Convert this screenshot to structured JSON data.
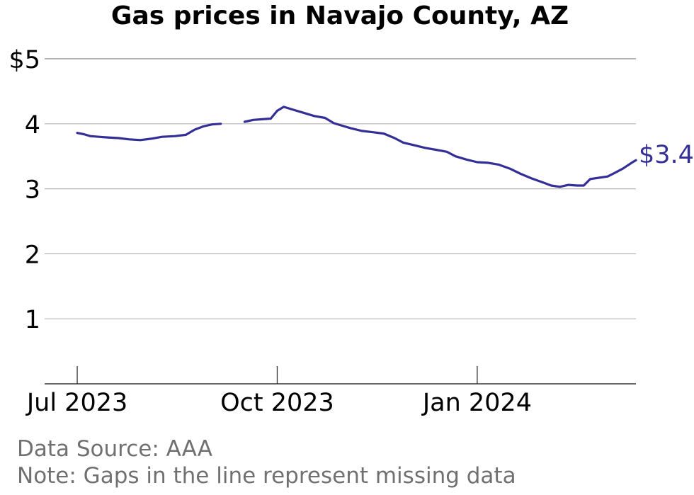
{
  "title": "Gas prices in Navajo County, AZ",
  "footer": {
    "source": "Data Source: AAA",
    "note": "Note: Gaps in the line represent missing data"
  },
  "colors": {
    "line": "#332f97",
    "grid": "#b5b5b5",
    "axis": "#333333",
    "footer": "#707070"
  },
  "chart_data": {
    "type": "line",
    "title": "Gas prices in Navajo County, AZ",
    "xlabel": "",
    "ylabel": "",
    "ylim": [
      0,
      5
    ],
    "xlim": [
      "2023-06-16",
      "2024-03-14"
    ],
    "grid": true,
    "y_ticks": [
      {
        "value": 1,
        "label": "1"
      },
      {
        "value": 2,
        "label": "2"
      },
      {
        "value": 3,
        "label": "3"
      },
      {
        "value": 4,
        "label": "4"
      },
      {
        "value": 5,
        "label": "$5"
      }
    ],
    "x_ticks": [
      {
        "date": "2023-07-01",
        "label": "Jul 2023"
      },
      {
        "date": "2023-10-01",
        "label": "Oct 2023"
      },
      {
        "date": "2024-01-01",
        "label": "Jan 2024"
      }
    ],
    "end_label": "$3.44",
    "series": [
      {
        "segments": [
          [
            [
              "2023-07-01",
              3.86
            ],
            [
              "2023-07-04",
              3.84
            ],
            [
              "2023-07-07",
              3.81
            ],
            [
              "2023-07-11",
              3.8
            ],
            [
              "2023-07-15",
              3.79
            ],
            [
              "2023-07-20",
              3.78
            ],
            [
              "2023-07-25",
              3.76
            ],
            [
              "2023-07-30",
              3.75
            ],
            [
              "2023-08-04",
              3.77
            ],
            [
              "2023-08-09",
              3.8
            ],
            [
              "2023-08-15",
              3.81
            ],
            [
              "2023-08-20",
              3.83
            ],
            [
              "2023-08-24",
              3.91
            ],
            [
              "2023-08-28",
              3.96
            ],
            [
              "2023-09-01",
              3.99
            ],
            [
              "2023-09-05",
              4.0
            ]
          ],
          [
            [
              "2023-09-16",
              4.03
            ],
            [
              "2023-09-20",
              4.06
            ],
            [
              "2023-09-24",
              4.07
            ],
            [
              "2023-09-28",
              4.08
            ],
            [
              "2023-10-01",
              4.2
            ],
            [
              "2023-10-04",
              4.26
            ],
            [
              "2023-10-08",
              4.22
            ],
            [
              "2023-10-13",
              4.17
            ],
            [
              "2023-10-18",
              4.12
            ],
            [
              "2023-10-23",
              4.09
            ],
            [
              "2023-10-27",
              4.01
            ],
            [
              "2023-10-31",
              3.97
            ],
            [
              "2023-11-04",
              3.93
            ],
            [
              "2023-11-09",
              3.89
            ],
            [
              "2023-11-14",
              3.87
            ],
            [
              "2023-11-19",
              3.85
            ],
            [
              "2023-11-24",
              3.78
            ],
            [
              "2023-11-28",
              3.71
            ],
            [
              "2023-12-03",
              3.67
            ],
            [
              "2023-12-08",
              3.63
            ],
            [
              "2023-12-13",
              3.6
            ],
            [
              "2023-12-18",
              3.57
            ],
            [
              "2023-12-22",
              3.5
            ],
            [
              "2023-12-27",
              3.45
            ],
            [
              "2024-01-01",
              3.41
            ],
            [
              "2024-01-06",
              3.4
            ],
            [
              "2024-01-11",
              3.37
            ],
            [
              "2024-01-16",
              3.31
            ],
            [
              "2024-01-21",
              3.23
            ],
            [
              "2024-01-26",
              3.16
            ],
            [
              "2024-01-31",
              3.1
            ],
            [
              "2024-02-04",
              3.05
            ],
            [
              "2024-02-08",
              3.03
            ],
            [
              "2024-02-12",
              3.06
            ],
            [
              "2024-02-16",
              3.05
            ],
            [
              "2024-02-19",
              3.05
            ],
            [
              "2024-02-22",
              3.15
            ],
            [
              "2024-02-26",
              3.17
            ],
            [
              "2024-03-01",
              3.19
            ],
            [
              "2024-03-04",
              3.24
            ],
            [
              "2024-03-08",
              3.31
            ],
            [
              "2024-03-12",
              3.4
            ],
            [
              "2024-03-14",
              3.44
            ]
          ]
        ]
      }
    ]
  }
}
